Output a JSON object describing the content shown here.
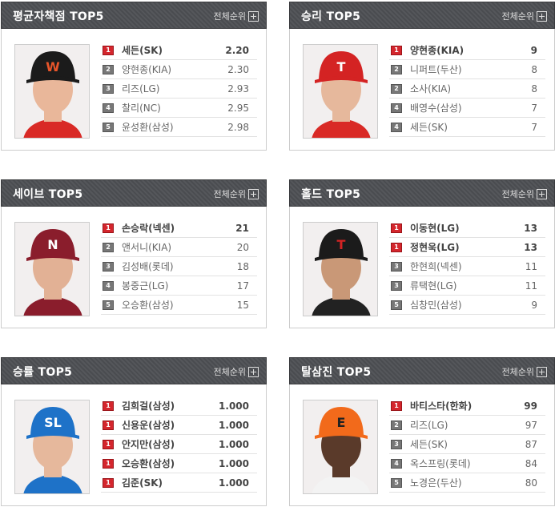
{
  "more_label": "전체순위",
  "panels": [
    {
      "title": "평균자책점 TOP5",
      "cap_color": "#1b1b1b",
      "logo": "W",
      "logo_color": "#e8552a",
      "skin": "#e9b79a",
      "shirt": "#d92a26",
      "rows": [
        {
          "rank": "1",
          "name": "세든(SK)",
          "value": "2.20",
          "top": true
        },
        {
          "rank": "2",
          "name": "양현종(KIA)",
          "value": "2.30"
        },
        {
          "rank": "3",
          "name": "리즈(LG)",
          "value": "2.93"
        },
        {
          "rank": "4",
          "name": "찰리(NC)",
          "value": "2.95"
        },
        {
          "rank": "5",
          "name": "윤성환(삼성)",
          "value": "2.98"
        }
      ]
    },
    {
      "title": "승리 TOP5",
      "cap_color": "#d42323",
      "logo": "T",
      "logo_color": "#fff",
      "skin": "#e6b89c",
      "shirt": "#d92a26",
      "rows": [
        {
          "rank": "1",
          "name": "양현종(KIA)",
          "value": "9",
          "top": true
        },
        {
          "rank": "2",
          "name": "니퍼트(두산)",
          "value": "8"
        },
        {
          "rank": "2",
          "name": "소사(KIA)",
          "value": "8"
        },
        {
          "rank": "4",
          "name": "배영수(삼성)",
          "value": "7"
        },
        {
          "rank": "4",
          "name": "세든(SK)",
          "value": "7"
        }
      ]
    },
    {
      "title": "세이브 TOP5",
      "cap_color": "#8a1d2c",
      "logo": "N",
      "logo_color": "#fff",
      "skin": "#e2b195",
      "shirt": "#8a1d2c",
      "rows": [
        {
          "rank": "1",
          "name": "손승락(넥센)",
          "value": "21",
          "top": true
        },
        {
          "rank": "2",
          "name": "앤서니(KIA)",
          "value": "20"
        },
        {
          "rank": "3",
          "name": "김성배(롯데)",
          "value": "18"
        },
        {
          "rank": "4",
          "name": "봉중근(LG)",
          "value": "17"
        },
        {
          "rank": "5",
          "name": "오승환(삼성)",
          "value": "15"
        }
      ]
    },
    {
      "title": "홀드 TOP5",
      "cap_color": "#1b1b1b",
      "logo": "T",
      "logo_color": "#d42323",
      "skin": "#c99877",
      "shirt": "#222",
      "rows": [
        {
          "rank": "1",
          "name": "이동현(LG)",
          "value": "13",
          "top": true
        },
        {
          "rank": "1",
          "name": "정현욱(LG)",
          "value": "13",
          "top": true
        },
        {
          "rank": "3",
          "name": "한현희(넥센)",
          "value": "11"
        },
        {
          "rank": "3",
          "name": "류택현(LG)",
          "value": "11"
        },
        {
          "rank": "5",
          "name": "심창민(삼성)",
          "value": "9"
        }
      ]
    },
    {
      "title": "승률 TOP5",
      "cap_color": "#1e72c8",
      "logo": "SL",
      "logo_color": "#fff",
      "skin": "#e6b89c",
      "shirt": "#1e72c8",
      "rows": [
        {
          "rank": "1",
          "name": "김희걸(삼성)",
          "value": "1.000",
          "top": true
        },
        {
          "rank": "1",
          "name": "신용운(삼성)",
          "value": "1.000",
          "top": true
        },
        {
          "rank": "1",
          "name": "안지만(삼성)",
          "value": "1.000",
          "top": true
        },
        {
          "rank": "1",
          "name": "오승환(삼성)",
          "value": "1.000",
          "top": true
        },
        {
          "rank": "1",
          "name": "김준(SK)",
          "value": "1.000",
          "top": true
        }
      ]
    },
    {
      "title": "탈삼진 TOP5",
      "cap_color": "#f26a1b",
      "logo": "E",
      "logo_color": "#222",
      "skin": "#5a3a2a",
      "shirt": "#f3f3f3",
      "rows": [
        {
          "rank": "1",
          "name": "바티스타(한화)",
          "value": "99",
          "top": true
        },
        {
          "rank": "2",
          "name": "리즈(LG)",
          "value": "97"
        },
        {
          "rank": "3",
          "name": "세든(SK)",
          "value": "87"
        },
        {
          "rank": "4",
          "name": "옥스프링(롯데)",
          "value": "84"
        },
        {
          "rank": "5",
          "name": "노경은(두산)",
          "value": "80"
        }
      ]
    }
  ]
}
